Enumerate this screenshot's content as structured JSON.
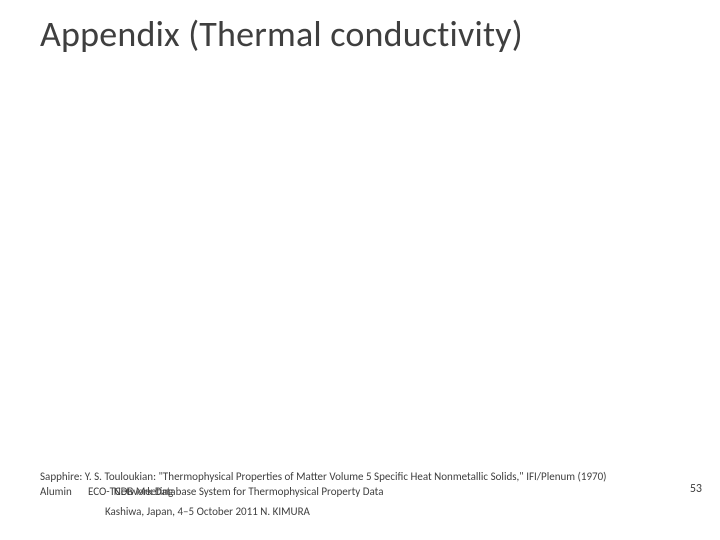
{
  "title": "Appendix (Thermal conductivity)",
  "citations": {
    "sapphire": "Sapphire: Y. S. Touloukian: \"Thermophysical Properties of Matter Volume 5 Specific Heat Nonmetallic Solids,\" IFI/Plenum (1970)",
    "aluminum_prefix": "Alumin",
    "aluminum_overlap": "ECO-TCDB Meeting",
    "aluminum_suffix": "Network Database System for Thermophysical Property Data"
  },
  "footer": "Kashiwa, Japan, 4–5 October 2011 N. KIMURA",
  "pageNumber": "53",
  "colors": {
    "background": "#ffffff",
    "text": "#3f3f3f"
  },
  "fonts": {
    "title_size_pt": 36,
    "body_size_pt": 11,
    "footer_size_pt": 11,
    "pagenum_size_pt": 12
  }
}
